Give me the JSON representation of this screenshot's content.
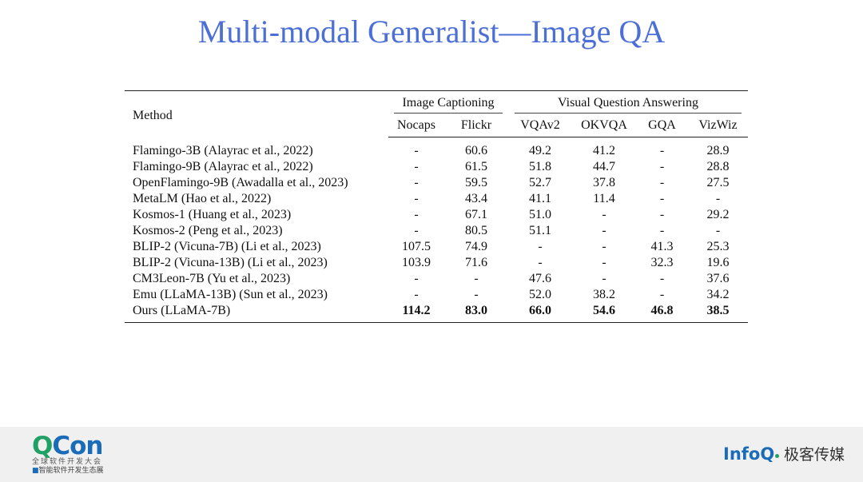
{
  "slide": {
    "title": "Multi-modal Generalist—Image QA"
  },
  "table": {
    "method_header": "Method",
    "groups": {
      "captioning": "Image Captioning",
      "vqa": "Visual Question Answering"
    },
    "columns": [
      "Nocaps",
      "Flickr",
      "VQAv2",
      "OKVQA",
      "GQA",
      "VizWiz"
    ],
    "rows": [
      {
        "method": "Flamingo-3B (Alayrac et al., 2022)",
        "values": [
          "-",
          "60.6",
          "49.2",
          "41.2",
          "-",
          "28.9"
        ]
      },
      {
        "method": "Flamingo-9B (Alayrac et al., 2022)",
        "values": [
          "-",
          "61.5",
          "51.8",
          "44.7",
          "-",
          "28.8"
        ]
      },
      {
        "method": "OpenFlamingo-9B (Awadalla et al., 2023)",
        "values": [
          "-",
          "59.5",
          "52.7",
          "37.8",
          "-",
          "27.5"
        ]
      },
      {
        "method": "MetaLM (Hao et al., 2022)",
        "values": [
          "-",
          "43.4",
          "41.1",
          "11.4",
          "-",
          "-"
        ]
      },
      {
        "method": "Kosmos-1 (Huang et al., 2023)",
        "values": [
          "-",
          "67.1",
          "51.0",
          "-",
          "-",
          "29.2"
        ]
      },
      {
        "method": "Kosmos-2 (Peng et al., 2023)",
        "values": [
          "-",
          "80.5",
          "51.1",
          "-",
          "-",
          "-"
        ]
      },
      {
        "method": "BLIP-2 (Vicuna-7B) (Li et al., 2023)",
        "values": [
          "107.5",
          "74.9",
          "-",
          "-",
          "41.3",
          "25.3"
        ]
      },
      {
        "method": "BLIP-2 (Vicuna-13B) (Li et al., 2023)",
        "values": [
          "103.9",
          "71.6",
          "-",
          "-",
          "32.3",
          "19.6"
        ]
      },
      {
        "method": "CM3Leon-7B (Yu et al., 2023)",
        "values": [
          "-",
          "-",
          "47.6",
          "-",
          "-",
          "37.6"
        ]
      },
      {
        "method": "Emu (LLaMA-13B) (Sun et al., 2023)",
        "values": [
          "-",
          "-",
          "52.0",
          "38.2",
          "-",
          "34.2"
        ]
      },
      {
        "method": "Ours (LLaMA-7B)",
        "values": [
          "114.2",
          "83.0",
          "66.0",
          "54.6",
          "46.8",
          "38.5"
        ],
        "bold": true
      }
    ]
  },
  "footer": {
    "qcon_q": "Q",
    "qcon_con": "Con",
    "qcon_line1": "全球软件开发大会",
    "qcon_mark": "■",
    "qcon_line2": "智能软件开发生态展",
    "infoq": "InfoQ",
    "infoq_cn": "极客传媒",
    "colors": {
      "green": "#21a064",
      "blue": "#1a6bb8",
      "title": "#4b6fd6"
    }
  }
}
